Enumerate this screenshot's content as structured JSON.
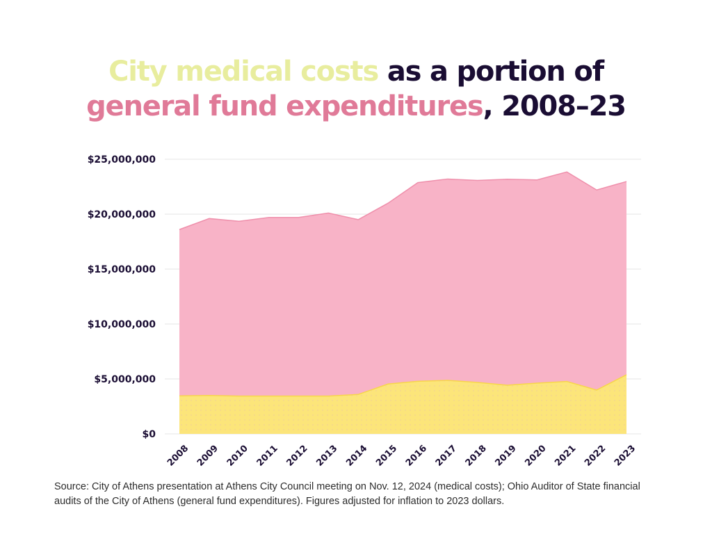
{
  "title": {
    "part1": "City medical costs",
    "part2": " as a portion of",
    "part3": "general fund expenditures",
    "part4": ", 2008–23"
  },
  "footer": {
    "source": "Source: City of Athens presentation at Athens City Council meeting on Nov. 12, 2024 (medical costs); Ohio Auditor of State financial audits of the City of Athens (general fund expenditures). Figures adjusted for inflation to 2023 dollars."
  },
  "colors": {
    "medical_fill": "#fce57a",
    "medical_line": "#f7d64a",
    "general_fill": "#f8b3c7",
    "general_line": "#ef8fab",
    "title_yellow": "#e8ed9e",
    "title_pink": "#e07a98",
    "text_dark": "#1a0d33",
    "grid": "#e6e6e6"
  },
  "chart_data": {
    "type": "area",
    "title": "City medical costs as a portion of general fund expenditures, 2008–23",
    "xlabel": "",
    "ylabel": "",
    "x": [
      "2008",
      "2009",
      "2010",
      "2011",
      "2012",
      "2013",
      "2014",
      "2015",
      "2016",
      "2017",
      "2018",
      "2019",
      "2020",
      "2021",
      "2022",
      "2023"
    ],
    "series": [
      {
        "name": "General fund expenditures",
        "values": [
          18600000,
          19600000,
          19350000,
          19700000,
          19700000,
          20100000,
          19500000,
          21000000,
          22870000,
          23200000,
          23070000,
          23180000,
          23120000,
          23840000,
          22200000,
          22970000
        ]
      },
      {
        "name": "City medical costs",
        "values": [
          3460000,
          3500000,
          3440000,
          3440000,
          3440000,
          3440000,
          3590000,
          4540000,
          4790000,
          4870000,
          4680000,
          4430000,
          4620000,
          4770000,
          3990000,
          5380000
        ]
      }
    ],
    "ylim": [
      0,
      25000000
    ],
    "yticks": [
      0,
      5000000,
      10000000,
      15000000,
      20000000,
      25000000
    ],
    "ytick_labels": [
      "$0",
      "$5,000,000",
      "$10,000,000",
      "$15,000,000",
      "$20,000,000",
      "$25,000,000"
    ],
    "grid": true,
    "legend": "none (encoded in title colors)"
  }
}
